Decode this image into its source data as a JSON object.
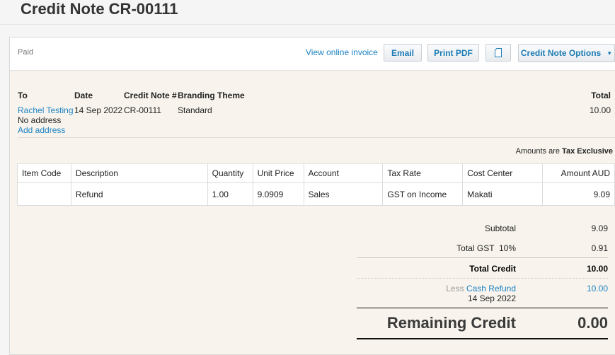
{
  "title": "Credit Note CR-00111",
  "status": "Paid",
  "actions": {
    "view_online": "View online invoice",
    "email": "Email",
    "print_pdf": "Print PDF",
    "copy_icon": "document-icon",
    "options": "Credit Note Options"
  },
  "details": {
    "to_label": "To",
    "to_name": "Rachel Testing",
    "no_address": "No address",
    "add_address": "Add address",
    "date_label": "Date",
    "date": "14 Sep 2022",
    "number_label": "Credit Note #",
    "number": "CR-00111",
    "theme_label": "Branding Theme",
    "theme": "Standard",
    "total_label": "Total",
    "total": "10.00"
  },
  "amounts_are": {
    "label": "Amounts are",
    "value": "Tax Exclusive"
  },
  "table": {
    "headers": [
      "Item Code",
      "Description",
      "Quantity",
      "Unit Price",
      "Account",
      "Tax Rate",
      "Cost Center",
      "Amount AUD"
    ],
    "rows": [
      [
        "",
        "Refund",
        "1.00",
        "9.0909",
        "Sales",
        "GST on Income",
        "Makati",
        "9.09"
      ]
    ]
  },
  "summary": {
    "subtotal_label": "Subtotal",
    "subtotal": "9.09",
    "gst_label": "Total GST  10%",
    "gst": "0.91",
    "total_credit_label": "Total Credit",
    "total_credit": "10.00",
    "less_label": "Less",
    "refund_link": "Cash Refund",
    "refund_date": "14 Sep 2022",
    "refund_amount": "10.00",
    "remaining_label": "Remaining Credit",
    "remaining": "0.00"
  }
}
